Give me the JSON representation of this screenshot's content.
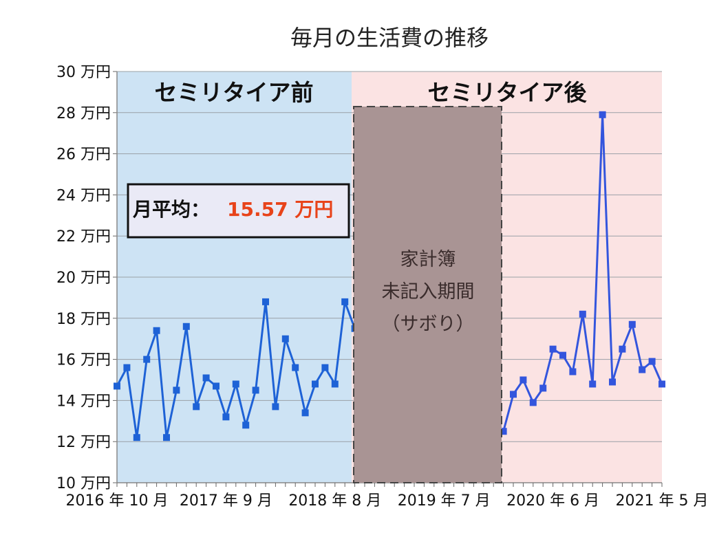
{
  "chart_data": {
    "type": "line",
    "title": "毎月の生活費の推移",
    "y_unit": "万円",
    "ylim": [
      10,
      30
    ],
    "y_ticks": [
      "30 万円",
      "28 万円",
      "26 万円",
      "24 万円",
      "22 万円",
      "20 万円",
      "18 万円",
      "16 万円",
      "14 万円",
      "12 万円",
      "10 万円"
    ],
    "x_tick_labels": [
      "2016 年 10 月",
      "2017 年 9 月",
      "2018 年 8 月",
      "2019 年 7 月",
      "2020 年 6 月",
      "2021 年 5 月"
    ],
    "period_before_label": "セミリタイア前",
    "period_after_label": "セミリタイア後",
    "average_label": "月平均：",
    "average_value": "15.57 万円",
    "gap_lines": [
      "家計簿",
      "未記入期間",
      "（サボり）"
    ],
    "series": [
      {
        "name": "before",
        "color": "#1e62d6",
        "start_index": 0,
        "values": [
          14.7,
          15.6,
          12.2,
          16.0,
          17.4,
          12.2,
          14.5,
          17.6,
          13.7,
          15.1,
          14.7,
          13.2,
          14.8,
          12.8,
          14.5,
          18.8,
          13.7,
          17.0,
          15.6,
          13.4,
          14.8,
          15.6,
          14.8,
          18.8,
          17.5
        ]
      },
      {
        "name": "after",
        "color": "#3355dd",
        "start_index": 39,
        "values": [
          12.5,
          14.3,
          15.0,
          13.9,
          14.6,
          16.5,
          16.2,
          15.4,
          18.2,
          14.8,
          27.9,
          14.9,
          16.5,
          17.7,
          15.5,
          15.9,
          14.8
        ]
      }
    ],
    "colors": {
      "before_bg": "#cde3f4",
      "after_bg": "#fbe3e3",
      "gap_box": "#a99494",
      "grid": "#9aa0a6"
    }
  }
}
